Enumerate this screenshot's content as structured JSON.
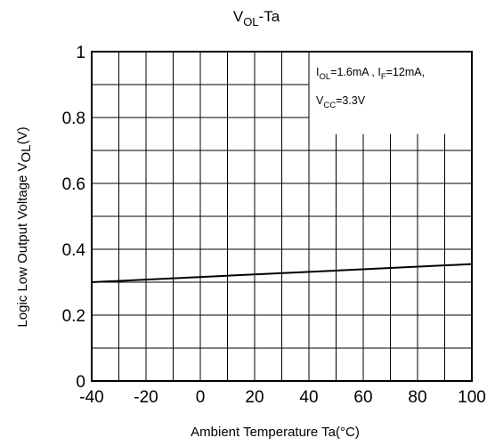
{
  "chart_data": {
    "type": "line",
    "title": {
      "main": "V",
      "sub": "OL",
      "suffix": "-Ta"
    },
    "xlabel": "Ambient Temperature Ta(°C)",
    "ylabel": {
      "main": "Logic Low Output Voltage V",
      "sub": "OL",
      "suffix": "(V)"
    },
    "xlim": [
      -40,
      100
    ],
    "ylim": [
      0,
      1
    ],
    "x_ticks": [
      -40,
      -20,
      0,
      20,
      40,
      60,
      80,
      100
    ],
    "y_ticks": [
      {
        "value": 0,
        "label": "0"
      },
      {
        "value": 0.2,
        "label": "0.2"
      },
      {
        "value": 0.4,
        "label": "0.4"
      },
      {
        "value": 0.6,
        "label": "0.6"
      },
      {
        "value": 0.8,
        "label": "0.8"
      },
      {
        "value": 1,
        "label": "1"
      }
    ],
    "grid": true,
    "series": [
      {
        "x": [
          -40,
          100
        ],
        "y": [
          0.3,
          0.355
        ]
      }
    ],
    "annotation": {
      "line1": [
        {
          "text": "I",
          "sub": false
        },
        {
          "text": "OL",
          "sub": true
        },
        {
          "text": "=1.6mA , I",
          "sub": false
        },
        {
          "text": "F",
          "sub": true
        },
        {
          "text": "=12mA,",
          "sub": false
        }
      ],
      "line2": [
        {
          "text": "V",
          "sub": false
        },
        {
          "text": "CC",
          "sub": true
        },
        {
          "text": "=3.3V",
          "sub": false
        }
      ],
      "placement": "top-right"
    }
  }
}
